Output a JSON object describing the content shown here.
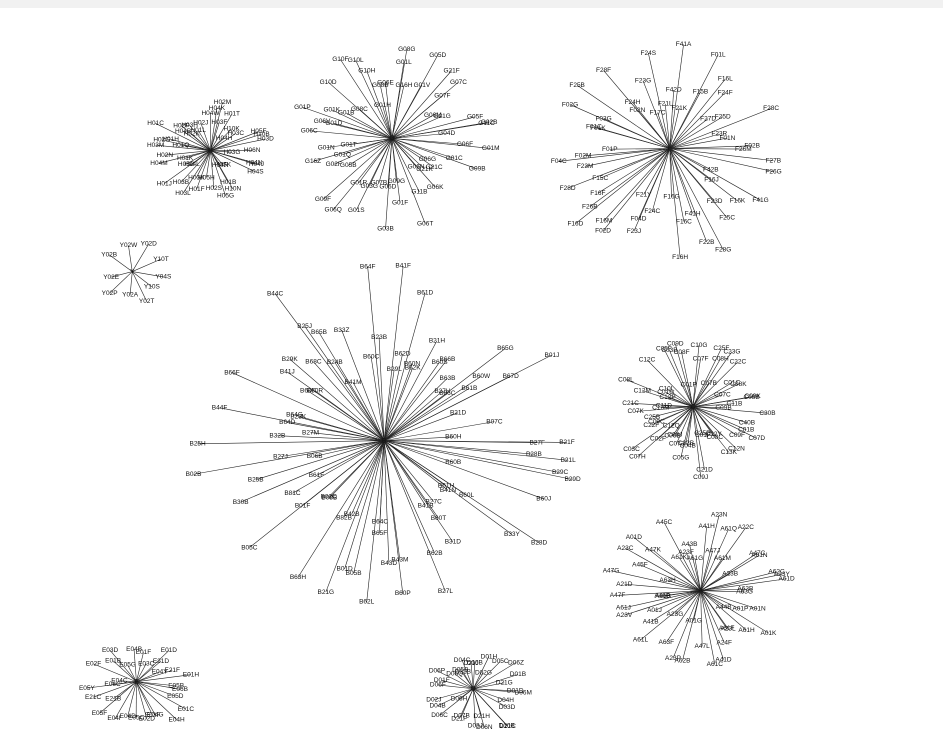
{
  "clusters": [
    {
      "name": "cluster-g",
      "hub": "G",
      "labels": [
        "G04D",
        "G06F",
        "G01M",
        "G01C",
        "G09B",
        "G06G",
        "G21C",
        "G21K",
        "G06K",
        "G06N",
        "G06T",
        "G11B",
        "G09G",
        "G01F",
        "G06D",
        "G03B",
        "G07B",
        "G03G",
        "G01S",
        "G01R",
        "G06Q",
        "G09F",
        "G05B",
        "G02F",
        "G16Z",
        "G01Q",
        "G01T",
        "G01N",
        "G06C",
        "G01D",
        "G06V",
        "G01P",
        "G01K",
        "G01B",
        "G08C",
        "G10D",
        "G10F",
        "G10L",
        "G10H",
        "G01H",
        "G08B",
        "G06E",
        "G01L",
        "G08G",
        "G16H",
        "G01V",
        "G05D",
        "G21F",
        "G07F",
        "G07C",
        "G21G",
        "G06M",
        "G05F",
        "G02B",
        "G11C"
      ]
    },
    {
      "name": "cluster-f",
      "hub": "F",
      "labels": [
        "F26M",
        "F27B",
        "F26G",
        "F42B",
        "F41G",
        "F16K",
        "F16J",
        "F23D",
        "F25C",
        "F28G",
        "F22B",
        "F41H",
        "F16H",
        "F16C",
        "F16G",
        "F24C",
        "F23J",
        "F21Y",
        "F04D",
        "F16M",
        "F02D",
        "F26B",
        "F16D",
        "F16F",
        "F15C",
        "F28D",
        "F23M",
        "F04C",
        "F02M",
        "F01P",
        "F01K",
        "F01C",
        "F02G",
        "F03G",
        "F25B",
        "F28F",
        "F02N",
        "F24H",
        "F23G",
        "F17C",
        "F24S",
        "F21L",
        "F42D",
        "F41A",
        "F21K",
        "F15B",
        "F01L",
        "F16L",
        "F24F",
        "F27D",
        "F25D",
        "F23R",
        "F28C",
        "F01N",
        "F02B"
      ]
    },
    {
      "name": "cluster-h",
      "hub": "H",
      "labels": [
        "H06N",
        "H03G",
        "H04J",
        "H04N",
        "H04S",
        "H05K",
        "H04R",
        "H01B",
        "H10N",
        "H05G",
        "H02S",
        "H05H",
        "H01F",
        "H03K",
        "H03L",
        "H03B",
        "H04L",
        "H01J",
        "H05C",
        "H01K",
        "H04M",
        "H02N",
        "H03M",
        "H02G",
        "H01Q",
        "H01H",
        "H01C",
        "H04B",
        "H02P",
        "H02K",
        "H03H",
        "H01L",
        "H02J",
        "H04W",
        "H04K",
        "H02M",
        "H03F",
        "H01T",
        "H10K",
        "H04H",
        "H03C",
        "H05F",
        "H10B",
        "H03D"
      ]
    },
    {
      "name": "cluster-y",
      "hub": "Y",
      "labels": [
        "Y04S",
        "Y10S",
        "Y02T",
        "Y02A",
        "Y02P",
        "Y02E",
        "Y02B",
        "Y02W",
        "Y02D",
        "Y10T"
      ]
    },
    {
      "name": "cluster-b",
      "hub": "B",
      "labels": [
        "B21L",
        "B27F",
        "B28B",
        "B29D",
        "B29C",
        "B60B",
        "B60J",
        "B28D",
        "B61H",
        "B33Y",
        "B60L",
        "B41N",
        "B27C",
        "B41B",
        "B31D",
        "B60T",
        "B27L",
        "B62B",
        "B43M",
        "B60P",
        "B43D",
        "B64C",
        "B65F",
        "B62L",
        "B01D",
        "B05B",
        "B21G",
        "B42B",
        "B82B",
        "B63H",
        "B08B",
        "B01F",
        "B02C",
        "B05C",
        "B81C",
        "B61F",
        "B30B",
        "B25B",
        "B06B",
        "B02B",
        "B27J",
        "B32B",
        "B27M",
        "B25H",
        "B64D",
        "B64G",
        "B44F",
        "B23K",
        "B66F",
        "B60K",
        "B41J",
        "B60R",
        "B29K",
        "B68C",
        "B25J",
        "B44C",
        "B24B",
        "B65B",
        "B41M",
        "B33Z",
        "B60C",
        "B64F",
        "B23B",
        "B41F",
        "B29L",
        "B62D",
        "B60N",
        "B61D",
        "B21H",
        "B62K",
        "B66B",
        "B60S",
        "B63B",
        "B27H",
        "B66C",
        "B65G",
        "B60W",
        "B61B",
        "B01J",
        "B67D",
        "B21D",
        "B07C",
        "B60H",
        "B21F"
      ]
    },
    {
      "name": "cluster-c",
      "hub": "C",
      "labels": [
        "C09B",
        "C30B",
        "C40B",
        "C01B",
        "C07D",
        "C09F",
        "C12N",
        "C12Y",
        "C08C",
        "C13K",
        "C01F",
        "C25D",
        "C21D",
        "C09J",
        "C04B",
        "C05G",
        "C22B",
        "C07J",
        "C06B",
        "C08J",
        "C02F",
        "C07H",
        "C12Q",
        "C03C",
        "C22F",
        "C09C",
        "C25B",
        "C07K",
        "C10M",
        "C21C",
        "C11D",
        "C08L",
        "C12M",
        "C12P",
        "C01G",
        "C10L",
        "C12C",
        "C05F",
        "C03B",
        "C09D",
        "C08F",
        "C01P",
        "C07F",
        "C10G",
        "C25F",
        "C07B",
        "C08H",
        "C23G",
        "C22C",
        "C08K",
        "C01C",
        "C07C",
        "C08B",
        "C09K",
        "C11B"
      ]
    },
    {
      "name": "cluster-a",
      "hub": "A",
      "labels": [
        "A63B",
        "A63G",
        "A01N",
        "A01P",
        "A01K",
        "A44B",
        "A61H",
        "A61F",
        "A23L",
        "A24F",
        "A41D",
        "A61C",
        "A47L",
        "A62B",
        "A01G",
        "A23P",
        "A63F",
        "A23G",
        "A61L",
        "A41B",
        "A01J",
        "A23V",
        "A61J",
        "A61B",
        "A46B",
        "A47F",
        "A21D",
        "A63H",
        "A47G",
        "A45F",
        "A23C",
        "A47K",
        "A01D",
        "A61K",
        "A45C",
        "A23F",
        "A61G",
        "A43B",
        "A41H",
        "A23N",
        "A47J",
        "A61Q",
        "A61M",
        "A22C",
        "A47C",
        "A23B",
        "A61N",
        "A62C",
        "A61D",
        "A23Y"
      ]
    },
    {
      "name": "cluster-e",
      "hub": "E",
      "labels": [
        "E05B",
        "E06B",
        "E05D",
        "E01C",
        "E04H",
        "E04G",
        "E03F",
        "E02D",
        "E05C",
        "E04D",
        "E04F",
        "E05F",
        "E21B",
        "E21C",
        "E05Y",
        "E06C",
        "E04C",
        "E02F",
        "E01B",
        "E03D",
        "E05G",
        "E04B",
        "E01F",
        "E03C",
        "E01D",
        "E21D",
        "E04Y",
        "E21F",
        "E01H"
      ]
    },
    {
      "name": "cluster-d",
      "hub": "D",
      "labels": [
        "D01D",
        "D06M",
        "D04H",
        "D03D",
        "D10B",
        "D21C",
        "D21H",
        "D06N",
        "D03J",
        "D07B",
        "D21F",
        "D06C",
        "D06H",
        "D04B",
        "D02J",
        "D06F",
        "D01F",
        "D06P",
        "D06Q",
        "D05B",
        "D21B",
        "D04C",
        "D21J",
        "D06B",
        "D01H",
        "D02G",
        "D05C",
        "D06Z",
        "D01B",
        "D21G"
      ]
    }
  ]
}
